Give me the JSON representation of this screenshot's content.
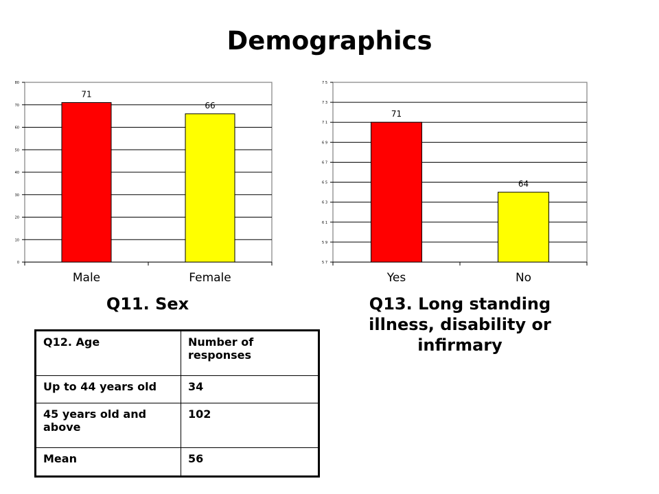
{
  "title": "Demographics",
  "chart_data": [
    {
      "type": "bar",
      "caption": "Q11. Sex",
      "categories": [
        "Male",
        "Female"
      ],
      "values": [
        71,
        66
      ],
      "data_labels": [
        "71",
        "66"
      ],
      "colors": [
        "#ff0000",
        "#ffff00"
      ],
      "ylim": [
        0,
        80
      ],
      "yticks": [
        0,
        10,
        20,
        30,
        40,
        50,
        60,
        70,
        80
      ],
      "ytick_labels": [
        "0",
        "10",
        "20",
        "30",
        "40",
        "50",
        "60",
        "70",
        "80"
      ],
      "grid": true,
      "legend": "none"
    },
    {
      "type": "bar",
      "caption": "Q13. Long standing illness, disability or infirmary",
      "categories": [
        "Yes",
        "No"
      ],
      "values": [
        71,
        64
      ],
      "data_labels": [
        "71",
        "64"
      ],
      "colors": [
        "#ff0000",
        "#ffff00"
      ],
      "ylim": [
        57,
        75
      ],
      "yticks": [
        57,
        59,
        61,
        63,
        65,
        67,
        69,
        71,
        73,
        75
      ],
      "ytick_labels": [
        "5 7",
        "5 9",
        "6 1",
        "6 3",
        "6 5",
        "6 7",
        "6 9",
        "7 1",
        "7 3",
        "7 5"
      ],
      "grid": true,
      "legend": "none"
    }
  ],
  "age_table": {
    "headers": [
      "Q12. Age",
      "Number of responses"
    ],
    "rows": [
      [
        "Up to 44 years old",
        "34"
      ],
      [
        "45 years old and above",
        "102"
      ],
      [
        "Mean",
        "56"
      ]
    ]
  }
}
